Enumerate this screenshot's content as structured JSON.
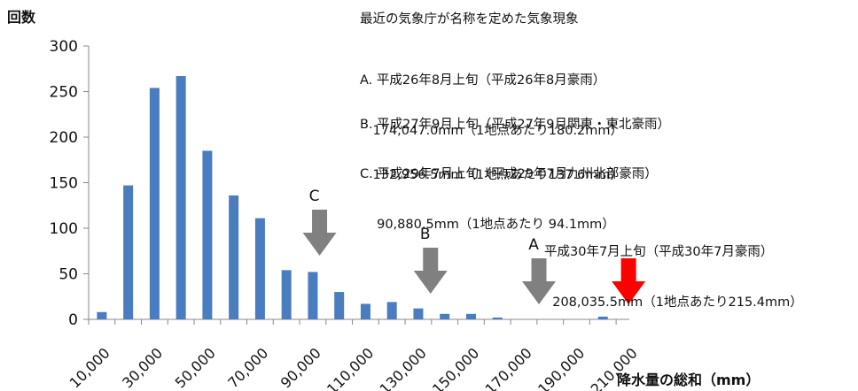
{
  "chart_data": {
    "type": "bar",
    "ylabel": "回数",
    "xlabel": "降水量の総和（mm）",
    "ylim": [
      0,
      300
    ],
    "yticks": [
      0,
      50,
      100,
      150,
      200,
      250,
      300
    ],
    "x_tick_labels": [
      "10,000",
      "30,000",
      "50,000",
      "70,000",
      "90,000",
      "110,000",
      "130,000",
      "150,000",
      "170,000",
      "190,000",
      "210,000"
    ],
    "categories": [
      "10,000",
      "20,000",
      "30,000",
      "40,000",
      "50,000",
      "60,000",
      "70,000",
      "80,000",
      "90,000",
      "100,000",
      "110,000",
      "120,000",
      "130,000",
      "140,000",
      "150,000",
      "160,000",
      "170,000",
      "180,000",
      "190,000",
      "200,000"
    ],
    "values": [
      8,
      147,
      254,
      267,
      185,
      136,
      111,
      54,
      52,
      30,
      17,
      19,
      12,
      6,
      6,
      2,
      0,
      0,
      0,
      3
    ],
    "bar_color": "#4a7cc0",
    "grid": false,
    "markers": [
      {
        "label": "C",
        "x": 90880.5,
        "color": "#808080"
      },
      {
        "label": "B",
        "x": 132956.5,
        "color": "#808080"
      },
      {
        "label": "A",
        "x": 174047.0,
        "color": "#808080"
      },
      {
        "label": "",
        "x": 208035.5,
        "color": "#ff0000"
      }
    ]
  },
  "annotations": {
    "title": "最近の気象庁が名称を定めた気象現象",
    "a_line1": "A. 平成26年8月上旬（平成26年8月豪雨）",
    "a_line2": "　174,047.0mm（1地点あたり180.2mm）",
    "b_line1": "B. 平成27年9月上旬（平成27年9月関東・東北豪雨）",
    "b_line2": "　132,956.5mm（1地点あたり137.6mm）",
    "c_line1": "C. 平成29年7月上旬（平成29年7月九州北部豪雨）",
    "c_line2": "　 90,880.5mm（1地点あたり 94.1mm）",
    "h_line1": "平成30年7月上旬（平成30年7月豪雨）",
    "h_line2": "  208,035.5mm（1地点あたり215.4mm）"
  }
}
